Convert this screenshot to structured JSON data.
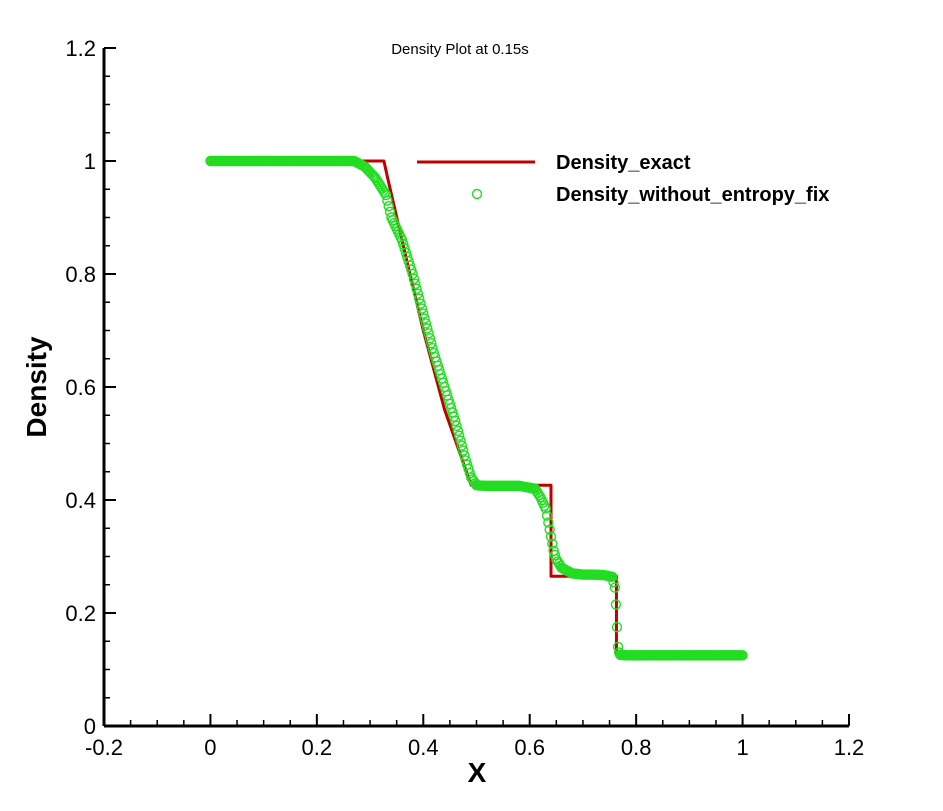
{
  "chart_data": {
    "type": "line",
    "title": "Density Plot at 0.15s",
    "xlabel": "X",
    "ylabel": "Density",
    "xlim": [
      -0.2,
      1.2
    ],
    "ylim": [
      0,
      1.2
    ],
    "xticks": [
      -0.2,
      0,
      0.2,
      0.4,
      0.6,
      0.8,
      1,
      1.2
    ],
    "xtick_labels": [
      "-0.2",
      "0",
      "0.2",
      "0.4",
      "0.6",
      "0.8",
      "1",
      "1.2"
    ],
    "yticks": [
      0,
      0.2,
      0.4,
      0.6,
      0.8,
      1,
      1.2
    ],
    "ytick_labels": [
      "0",
      "0.2",
      "0.4",
      "0.6",
      "0.8",
      "1",
      "1.2"
    ],
    "legend_position": "top-right",
    "grid": false,
    "series": [
      {
        "name": "Density_exact",
        "style": "line",
        "color": "#c00000",
        "x": [
          0,
          0.326,
          0.333,
          0.36,
          0.4,
          0.44,
          0.49,
          0.64,
          0.64,
          0.763,
          0.763,
          1
        ],
        "y": [
          1,
          1,
          0.97,
          0.86,
          0.7,
          0.56,
          0.426,
          0.426,
          0.265,
          0.265,
          0.125,
          0.125
        ]
      },
      {
        "name": "Density_without_entropy_fix",
        "style": "marker",
        "color": "#22dd22",
        "x": [
          0,
          0.05,
          0.1,
          0.15,
          0.2,
          0.25,
          0.27,
          0.29,
          0.31,
          0.33,
          0.34,
          0.36,
          0.38,
          0.4,
          0.42,
          0.44,
          0.46,
          0.48,
          0.49,
          0.5,
          0.52,
          0.55,
          0.58,
          0.61,
          0.62,
          0.63,
          0.635,
          0.64,
          0.645,
          0.65,
          0.66,
          0.68,
          0.7,
          0.72,
          0.74,
          0.755,
          0.76,
          0.762,
          0.764,
          0.766,
          0.768,
          0.77,
          0.78,
          0.8,
          0.85,
          0.9,
          0.95,
          1
        ],
        "y": [
          1,
          1,
          1,
          1,
          1,
          1,
          1,
          0.99,
          0.97,
          0.94,
          0.9,
          0.86,
          0.8,
          0.73,
          0.66,
          0.6,
          0.54,
          0.47,
          0.44,
          0.426,
          0.425,
          0.425,
          0.425,
          0.42,
          0.405,
          0.385,
          0.36,
          0.335,
          0.31,
          0.295,
          0.28,
          0.27,
          0.268,
          0.268,
          0.267,
          0.264,
          0.245,
          0.215,
          0.175,
          0.14,
          0.13,
          0.126,
          0.125,
          0.125,
          0.125,
          0.125,
          0.125,
          0.125
        ]
      }
    ]
  }
}
